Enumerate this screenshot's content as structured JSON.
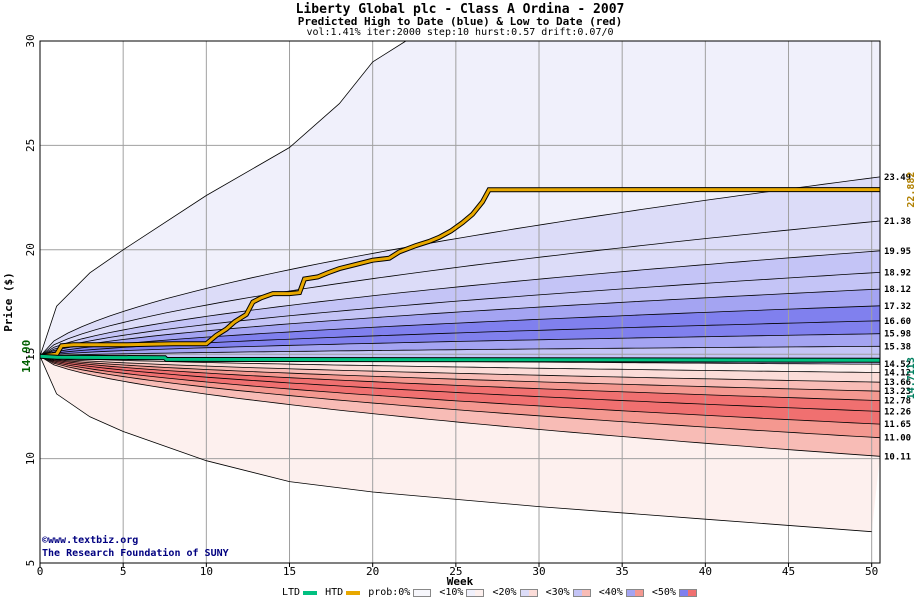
{
  "header": {
    "title": "Liberty Global plc - Class A Ordina - 2007",
    "subtitle": "Predicted High to Date (blue) &  Low to Date (red)",
    "params": "vol:1.41% iter:2000 step:10 hurst:0.57 drift:0.07/0"
  },
  "credit": {
    "line1": "©www.textbiz.org",
    "line2": "The Research Foundation of SUNY"
  },
  "legend": {
    "ltd_label": "LTD",
    "htd_label": "HTD",
    "prob_label": "prob:0%",
    "bins": [
      "<10%",
      "<20%",
      "<30%",
      "<40%",
      "<50%"
    ]
  },
  "chart_data": {
    "type": "area",
    "xlabel": "Week",
    "ylabel": "Price ($)",
    "xlim": [
      0,
      50.5
    ],
    "ylim": [
      5,
      30
    ],
    "x_ticks": [
      0,
      5,
      10,
      15,
      20,
      25,
      30,
      35,
      40,
      45,
      50
    ],
    "y_ticks": [
      5,
      10,
      15,
      20,
      25,
      30
    ],
    "grid": true,
    "start_price": 14.9,
    "start_label": "14.90",
    "quantile_labels_right": [
      "23.49",
      "21.38",
      "19.95",
      "18.92",
      "18.12",
      "17.32",
      "16.60",
      "15.98",
      "15.38",
      "14.52",
      "14.12",
      "13.66",
      "13.23",
      "12.78",
      "12.26",
      "11.65",
      "11.00",
      "10.11"
    ],
    "quantile_values_right": [
      23.49,
      21.38,
      19.95,
      18.92,
      18.12,
      17.32,
      16.6,
      15.98,
      15.38,
      14.52,
      14.12,
      13.66,
      13.23,
      12.78,
      12.26,
      11.65,
      11.0,
      10.11
    ],
    "outer_upper_values": [
      [
        0,
        14.9
      ],
      [
        1,
        17.3
      ],
      [
        3,
        18.9
      ],
      [
        5,
        20.0
      ],
      [
        10,
        22.6
      ],
      [
        15,
        24.9
      ],
      [
        18,
        27.0
      ],
      [
        20,
        29.0
      ],
      [
        22,
        30.0
      ]
    ],
    "outer_lower_end": 6.5,
    "outer_lower_values": [
      [
        0,
        14.9
      ],
      [
        1,
        13.1
      ],
      [
        3,
        12.0
      ],
      [
        5,
        11.3
      ],
      [
        10,
        9.9
      ],
      [
        15,
        8.9
      ],
      [
        20,
        8.4
      ],
      [
        30,
        7.7
      ],
      [
        40,
        7.1
      ],
      [
        50,
        6.5
      ]
    ],
    "series": [
      {
        "name": "HTD",
        "color": "#e8a800",
        "end_value": 22.882,
        "end_label": "22.882",
        "points": [
          [
            0,
            14.9
          ],
          [
            1.0,
            15.0
          ],
          [
            1.3,
            15.4
          ],
          [
            2,
            15.45
          ],
          [
            5,
            15.45
          ],
          [
            8,
            15.5
          ],
          [
            10,
            15.5
          ],
          [
            10.6,
            15.9
          ],
          [
            11.2,
            16.2
          ],
          [
            11.7,
            16.55
          ],
          [
            12.4,
            16.9
          ],
          [
            12.8,
            17.5
          ],
          [
            13.3,
            17.7
          ],
          [
            14,
            17.9
          ],
          [
            15,
            17.9
          ],
          [
            15.6,
            17.95
          ],
          [
            15.9,
            18.6
          ],
          [
            16.7,
            18.7
          ],
          [
            17.3,
            18.9
          ],
          [
            18.0,
            19.1
          ],
          [
            19.0,
            19.3
          ],
          [
            20.0,
            19.5
          ],
          [
            21.0,
            19.6
          ],
          [
            21.6,
            19.9
          ],
          [
            22.6,
            20.2
          ],
          [
            23.4,
            20.4
          ],
          [
            24.0,
            20.6
          ],
          [
            24.7,
            20.9
          ],
          [
            25.4,
            21.3
          ],
          [
            26.0,
            21.7
          ],
          [
            26.6,
            22.3
          ],
          [
            27.0,
            22.88
          ],
          [
            50.5,
            22.882
          ]
        ]
      },
      {
        "name": "LTD",
        "color": "#00c080",
        "end_value": 14.7113,
        "end_label": "14.7113",
        "points": [
          [
            0,
            14.9
          ],
          [
            1,
            14.85
          ],
          [
            7.5,
            14.83
          ],
          [
            7.6,
            14.75
          ],
          [
            50.5,
            14.7113
          ]
        ]
      }
    ],
    "band_colors": {
      "lt10_blue": "#f0f0fb",
      "lt20_blue": "#dcdcf8",
      "lt30_blue": "#c4c4f6",
      "lt40_blue": "#a4a4f2",
      "lt50_blue": "#8080ee",
      "lt10_red": "#fdf0ee",
      "lt20_red": "#fbdcd8",
      "lt30_red": "#f8bcb6",
      "lt40_red": "#f49890",
      "lt50_red": "#f07070"
    },
    "legend_placement": "bottom"
  }
}
